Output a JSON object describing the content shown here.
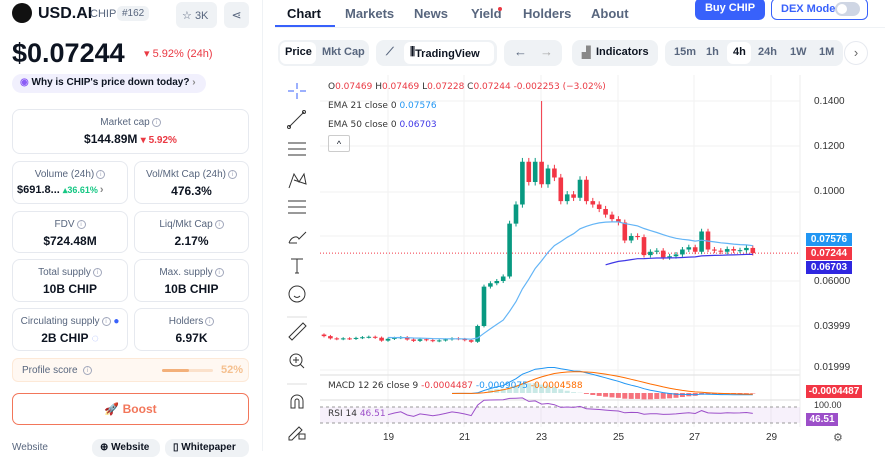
{
  "token": {
    "name": "USD.AI",
    "symbol": "CHIP",
    "rank": "#162",
    "watchlist": "3K",
    "price": "$0.07244",
    "change": "5.92% (24h)",
    "why": "Why is CHIP's price down today?"
  },
  "stats": {
    "market_cap": {
      "label": "Market cap",
      "value": "$144.89M",
      "change": "5.92%"
    },
    "volume": {
      "label": "Volume (24h)",
      "value": "$691.8...",
      "change": "36.61%"
    },
    "vol_mkt": {
      "label": "Vol/Mkt Cap (24h)",
      "value": "476.3%"
    },
    "fdv": {
      "label": "FDV",
      "value": "$724.48M"
    },
    "liq": {
      "label": "Liq/Mkt Cap",
      "value": "2.17%"
    },
    "total_supply": {
      "label": "Total supply",
      "value": "10B CHIP"
    },
    "max_supply": {
      "label": "Max. supply",
      "value": "10B CHIP"
    },
    "circ": {
      "label": "Circulating supply",
      "value": "2B CHIP"
    },
    "holders": {
      "label": "Holders",
      "value": "6.97K"
    },
    "profile": {
      "label": "Profile score",
      "value": "52%",
      "fraction": 0.52
    },
    "boost": "Boost",
    "website_label": "Website",
    "website_btn": "Website",
    "whitepaper_btn": "Whitepaper"
  },
  "tabs": [
    "Chart",
    "Markets",
    "News",
    "Yield",
    "Holders",
    "About"
  ],
  "buy": "Buy CHIP",
  "dex": "DEX Mode",
  "toolbar": {
    "price": "Price",
    "mktcap": "Mkt Cap",
    "tv": "TradingView",
    "indicators": "Indicators",
    "intervals": [
      "15m",
      "1h",
      "4h",
      "24h",
      "1W",
      "1M"
    ]
  },
  "legend": {
    "o": "O",
    "ov": "0.07469",
    "h": "H",
    "hv": "0.07469",
    "l": "L",
    "lv": "0.07228",
    "c": "C",
    "cv": "0.07244",
    "chg": "-0.002253 (−3.02%)",
    "ema21": "EMA 21 close 0",
    "ema21v": "0.07576",
    "ema50": "EMA 50 close 0",
    "ema50v": "0.06703",
    "macd": "MACD 12 26 close 9",
    "macd1": "-0.0004487",
    "macd2": "-0.0009075",
    "macd3": "-0.0004588",
    "rsi": "RSI 14",
    "rsiv": "46.51"
  },
  "tags": {
    "ema21": "0.07576",
    "price": "0.07244",
    "ema50": "0.06703",
    "macd": "-0.0004487",
    "rsi": "46.51",
    "rsi_top": "100.00"
  },
  "chart_data": {
    "type": "candlestick",
    "interval": "4h",
    "y_ticks": [
      "0.1400",
      "0.1200",
      "0.1000",
      "0.06000",
      "0.03999",
      "0.01999"
    ],
    "x_ticks": [
      "19",
      "21",
      "23",
      "25",
      "27",
      "29"
    ],
    "closes": [
      0.0355,
      0.0345,
      0.0342,
      0.0345,
      0.0343,
      0.0347,
      0.035,
      0.0352,
      0.0348,
      0.0335,
      0.0343,
      0.0347,
      0.035,
      0.034,
      0.0334,
      0.0341,
      0.0337,
      0.0333,
      0.0336,
      0.034,
      0.0345,
      0.0342,
      0.0337,
      0.033,
      0.04,
      0.0575,
      0.059,
      0.06,
      0.062,
      0.0855,
      0.094,
      0.113,
      0.104,
      0.113,
      0.103,
      0.11,
      0.106,
      0.0955,
      0.0985,
      0.097,
      0.105,
      0.0955,
      0.094,
      0.092,
      0.0895,
      0.0875,
      0.086,
      0.078,
      0.08,
      0.0795,
      0.0715,
      0.073,
      0.0735,
      0.0705,
      0.071,
      0.0718,
      0.074,
      0.075,
      0.073,
      0.082,
      0.074,
      0.0735,
      0.073,
      0.0742,
      0.0735,
      0.0737,
      0.0747,
      0.0724
    ],
    "first_open": 0.0362,
    "spike_high": 0.14,
    "spike_index": 34,
    "colors": {
      "up": "#089981",
      "down": "#f23645",
      "ema21": "#64b5f6",
      "ema50": "#3f37e6"
    }
  }
}
